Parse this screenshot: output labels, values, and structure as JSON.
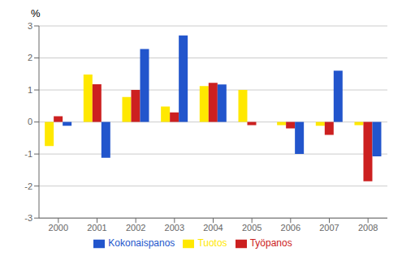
{
  "chart_data": {
    "type": "bar",
    "y_label": "%",
    "categories": [
      "2000",
      "2001",
      "2002",
      "2003",
      "2004",
      "2005",
      "2006",
      "2007",
      "2008"
    ],
    "series": [
      {
        "name": "Tuotos",
        "color": "#FFE800",
        "values": [
          -0.75,
          1.48,
          0.78,
          0.48,
          1.12,
          1.0,
          -0.1,
          -0.12,
          -0.1
        ]
      },
      {
        "name": "Työpanos",
        "color": "#CC2020",
        "values": [
          0.18,
          1.18,
          1.0,
          0.3,
          1.22,
          -0.1,
          -0.2,
          -0.4,
          -1.85
        ]
      },
      {
        "name": "Kokonaispanos",
        "color": "#2255CC",
        "values": [
          -0.12,
          -1.12,
          2.28,
          2.7,
          1.17,
          0.0,
          -1.0,
          1.6,
          -1.07
        ]
      }
    ],
    "ylim": [
      -3,
      3
    ],
    "yticks": [
      -3,
      -2,
      -1,
      0,
      1,
      2,
      3
    ],
    "grid": true,
    "legend": "bottom"
  }
}
